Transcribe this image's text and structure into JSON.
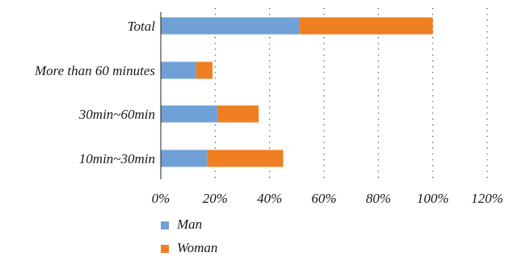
{
  "chart_data": {
    "type": "bar",
    "orientation": "horizontal",
    "stacked": true,
    "categories": [
      "Total",
      "More than 60 minutes",
      "30min~60min",
      "10min~30min"
    ],
    "series": [
      {
        "name": "Man",
        "values": [
          51,
          13,
          21,
          17
        ],
        "color": "#6fa0d6"
      },
      {
        "name": "Woman",
        "values": [
          49,
          6,
          15,
          28
        ],
        "color": "#ef7f22"
      }
    ],
    "x_ticks": [
      "0%",
      "20%",
      "40%",
      "60%",
      "80%",
      "100%",
      "120%"
    ],
    "xlim": [
      0,
      120
    ],
    "grid": "vertical dotted",
    "legend_position": "bottom-left"
  }
}
